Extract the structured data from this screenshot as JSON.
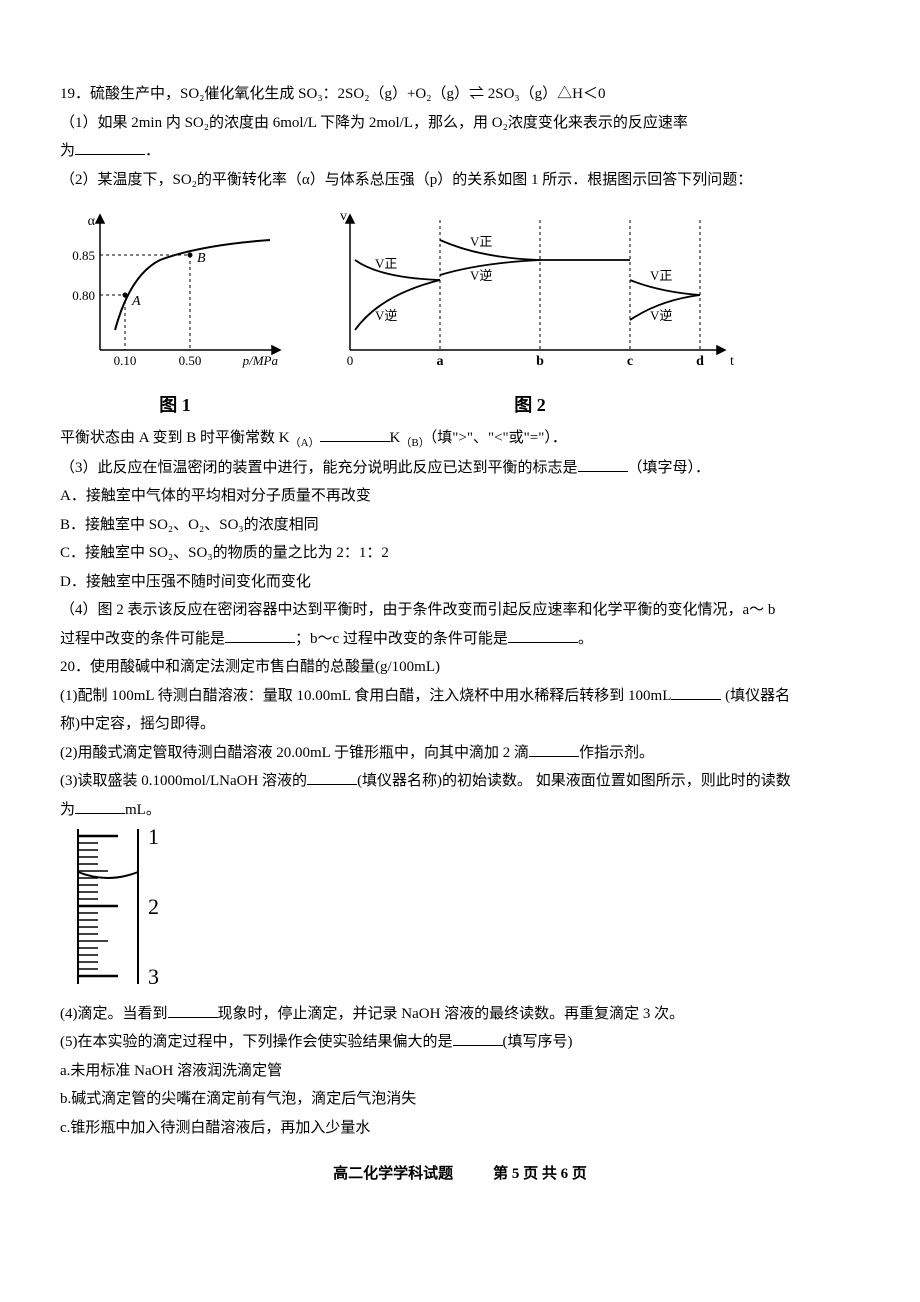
{
  "q19": {
    "stem": "19．硫酸生产中，SO₂催化氧化生成 SO₃：2SO₂（g）+O₂（g）⇌ 2SO₃（g）△H＜0",
    "p1a": "（1）如果 2min 内 SO₂的浓度由 6mol/L 下降为 2mol/L，那么，用 O₂浓度变化来表示的反应速率",
    "p1b_prefix": "为",
    "p1b_suffix": "．",
    "p2": "（2）某温度下，SO₂的平衡转化率（α）与体系总压强（p）的关系如图 1 所示．根据图示回答下列问题：",
    "fig1": {
      "caption": "图 1",
      "y_label": "α",
      "y_ticks": [
        "0.85",
        "0.80"
      ],
      "x_ticks": [
        "0.10",
        "0.50"
      ],
      "x_label": "p/MPa",
      "points": [
        "A",
        "B"
      ],
      "axis_color": "#000000",
      "curve_color": "#000000",
      "dash": "3,3"
    },
    "fig2": {
      "caption": "图 2",
      "y_label": "v",
      "x_label": "t",
      "x_ticks": [
        "0",
        "a",
        "b",
        "c",
        "d"
      ],
      "labels": [
        "V正",
        "V逆",
        "V正",
        "V逆",
        "V正",
        "V逆"
      ],
      "axis_color": "#000000",
      "dash": "3,3"
    },
    "p2b_prefix": "平衡状态由 A 变到 B 时平衡常数 K",
    "p2b_subA": "（A）",
    "p2b_mid": "K",
    "p2b_subB": "（B）",
    "p2b_suffix": "（填\">\"、\"<\"或\"=\"）．",
    "p3_prefix": "（3）此反应在恒温密闭的装置中进行，能充分说明此反应已达到平衡的标志是",
    "p3_suffix": "（填字母）．",
    "optA": "A．接触室中气体的平均相对分子质量不再改变",
    "optB": "B．接触室中 SO₂、O₂、SO₃的浓度相同",
    "optC": "C．接触室中 SO₂、SO₃的物质的量之比为 2：1：2",
    "optD": "D．接触室中压强不随时间变化而变化",
    "p4a": "（4）图 2 表示该反应在密闭容器中达到平衡时，由于条件改变而引起反应速率和化学平衡的变化情况，a～ b",
    "p4b_prefix": "过程中改变的条件可能是",
    "p4b_mid": "；b～c 过程中改变的条件可能是",
    "p4b_suffix": "。"
  },
  "q20": {
    "stem": "20．使用酸碱中和滴定法测定市售白醋的总酸量(g/100mL)",
    "p1_prefix": "(1)配制 100mL 待测白醋溶液：量取 10.00mL 食用白醋，注入烧杯中用水稀释后转移到 100mL",
    "p1_suffix": " (填仪器名",
    "p1_line2": "称)中定容，摇匀即得。",
    "p2_prefix": "(2)用酸式滴定管取待测白醋溶液 20.00mL 于锥形瓶中，向其中滴加 2 滴",
    "p2_suffix": "作指示剂。",
    "p3_prefix": "(3)读取盛装 0.1000mol/LNaOH 溶液的",
    "p3_mid": "(填仪器名称)的初始读数。 如果液面位置如图所示，则此时的读数",
    "p3_line2_prefix": "为",
    "p3_line2_suffix": "mL。",
    "burette": {
      "ticks": [
        "1",
        "2",
        "3"
      ],
      "stroke": "#000000",
      "minor_per_major": 10
    },
    "p4_prefix": "(4)滴定。当看到",
    "p4_suffix": "现象时，停止滴定，并记录 NaOH 溶液的最终读数。再重复滴定 3 次。",
    "p5_prefix": "(5)在本实验的滴定过程中，下列操作会使实验结果偏大的是",
    "p5_suffix": "(填写序号)",
    "opta": "a.未用标准 NaOH 溶液润洗滴定管",
    "optb": "b.碱式滴定管的尖嘴在滴定前有气泡，滴定后气泡消失",
    "optc": "c.锥形瓶中加入待测白醋溶液后，再加入少量水"
  },
  "footer": {
    "left": "高二化学学科试题",
    "right": "第 5 页 共 6 页"
  }
}
